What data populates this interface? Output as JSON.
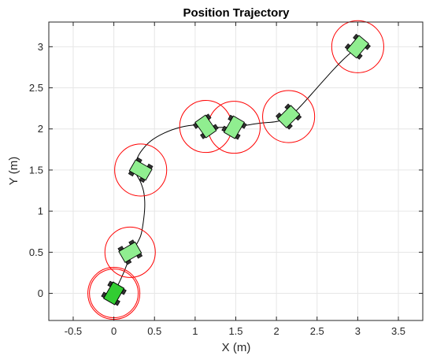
{
  "chart_data": {
    "type": "scatter",
    "title": "Position Trajectory",
    "xlabel": "X (m)",
    "ylabel": "Y (m)",
    "xlim": [
      -0.8,
      3.8
    ],
    "ylim": [
      -0.33,
      3.3
    ],
    "xticks": [
      -0.5,
      0,
      0.5,
      1,
      1.5,
      2,
      2.5,
      3,
      3.5
    ],
    "xtick_labels": [
      "-0.5",
      "0",
      "0.5",
      "1",
      "1.5",
      "2",
      "2.5",
      "3",
      "3.5"
    ],
    "yticks": [
      0,
      0.5,
      1,
      1.5,
      2,
      2.5,
      3
    ],
    "ytick_labels": [
      "0",
      "0.5",
      "1",
      "1.5",
      "2",
      "2.5",
      "3"
    ],
    "grid": true,
    "trajectory": {
      "x": [
        0.0,
        0.05,
        0.12,
        0.18,
        0.22,
        0.27,
        0.33,
        0.36,
        0.38,
        0.37,
        0.33,
        0.28,
        0.25,
        0.27,
        0.33,
        0.45,
        0.62,
        0.82,
        1.02,
        1.15,
        1.25,
        1.35,
        1.45,
        1.6,
        1.8,
        2.0,
        2.15,
        2.3,
        2.5,
        2.7,
        2.85,
        3.0
      ],
      "y": [
        0.0,
        0.1,
        0.25,
        0.4,
        0.48,
        0.58,
        0.7,
        0.85,
        1.05,
        1.22,
        1.35,
        1.44,
        1.5,
        1.6,
        1.72,
        1.85,
        1.95,
        2.02,
        2.05,
        2.04,
        2.02,
        2.02,
        2.02,
        2.04,
        2.07,
        2.09,
        2.14,
        2.28,
        2.5,
        2.72,
        2.87,
        3.0
      ]
    },
    "vehicles": [
      {
        "x": 0.0,
        "y": 0.0,
        "heading_deg": 60,
        "radius": 0.32,
        "fill": "#32cd32"
      },
      {
        "x": 0.0,
        "y": 0.0,
        "heading_deg": 60,
        "radius": 0.3,
        "fill": "#32cd32"
      },
      {
        "x": 0.2,
        "y": 0.5,
        "heading_deg": 30,
        "radius": 0.31,
        "fill": "#90ee90"
      },
      {
        "x": 0.33,
        "y": 1.5,
        "heading_deg": -30,
        "radius": 0.32,
        "fill": "#90ee90"
      },
      {
        "x": 1.13,
        "y": 2.03,
        "heading_deg": -55,
        "radius": 0.32,
        "fill": "#90ee90"
      },
      {
        "x": 1.48,
        "y": 2.02,
        "heading_deg": 60,
        "radius": 0.32,
        "fill": "#90ee90"
      },
      {
        "x": 2.15,
        "y": 2.15,
        "heading_deg": 45,
        "radius": 0.32,
        "fill": "#90ee90"
      },
      {
        "x": 3.0,
        "y": 3.0,
        "heading_deg": 50,
        "radius": 0.32,
        "fill": "#90ee90"
      }
    ],
    "colors": {
      "trajectory": "#000000",
      "circle": "#ff0000",
      "vehicle_edge": "#000000",
      "wheel": "#333333",
      "grid": "#e6e6e6",
      "axes": "#262626"
    }
  }
}
